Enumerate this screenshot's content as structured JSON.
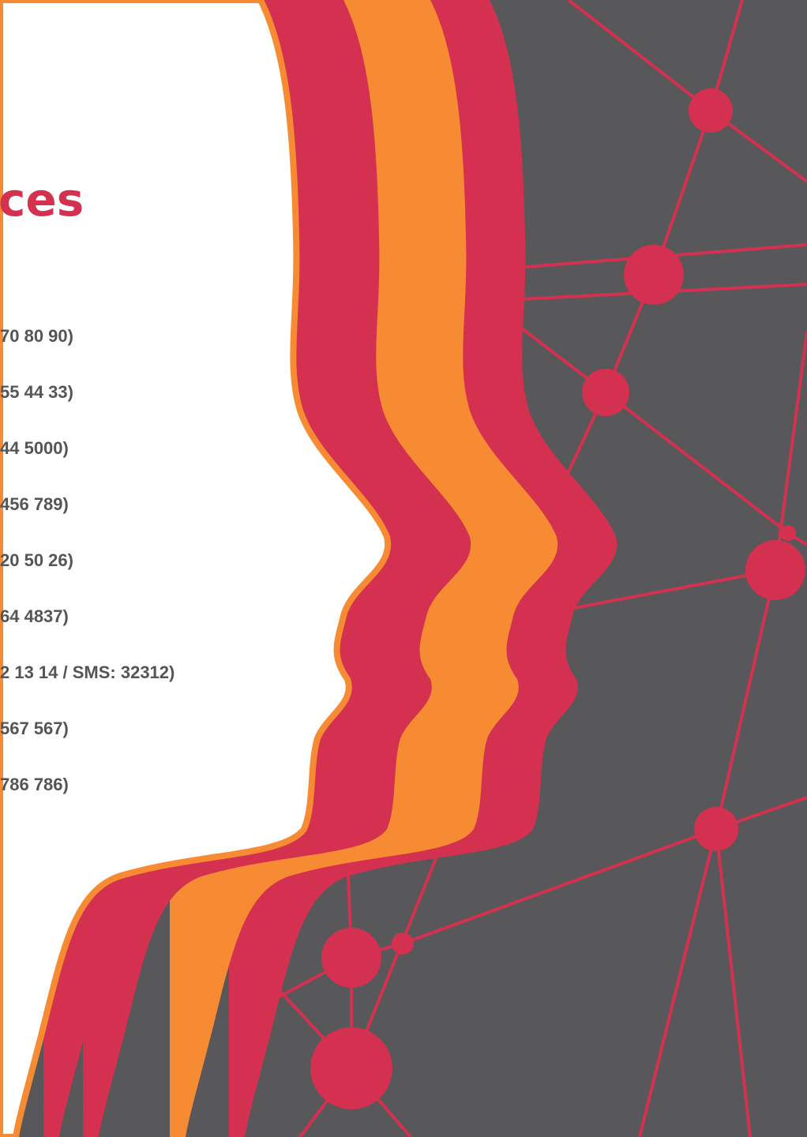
{
  "title": "ces",
  "items": [
    "70 80 90)",
    "55 44 33)",
    "44 5000)",
    "456 789)",
    "20 50 26)",
    "64 4837)",
    "2 13 14 / SMS: 32312)",
    "567 567)",
    "786 786)"
  ]
}
